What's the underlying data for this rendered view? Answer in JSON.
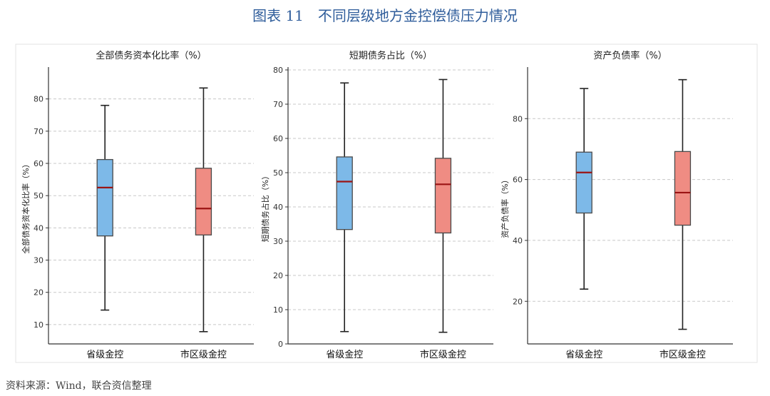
{
  "figure": {
    "title": "图表 11　不同层级地方金控偿债压力情况",
    "source": "资料来源：Wind，联合资信整理"
  },
  "colors": {
    "title": "#2f5d9b",
    "provincial_box": "#7db9e8",
    "municipal_box": "#ef8c83",
    "median": "#9b1414",
    "grid": "#c8c8c8"
  },
  "chart_data": [
    {
      "type": "box",
      "title": "全部债务资本化比率（%）",
      "ylabel": "全部债务资本化比率（%）",
      "ylim": [
        4,
        89
      ],
      "yticks": [
        10,
        20,
        30,
        40,
        50,
        60,
        70,
        80
      ],
      "grid": "horizontal-dashed",
      "categories": [
        "省级金控",
        "市区级金控"
      ],
      "boxes": [
        {
          "min": 14.5,
          "q1": 37.5,
          "median": 52.5,
          "q3": 61.2,
          "max": 78.0,
          "color": "#7db9e8"
        },
        {
          "min": 7.8,
          "q1": 37.8,
          "median": 46.0,
          "q3": 58.5,
          "max": 83.4,
          "color": "#ef8c83"
        }
      ]
    },
    {
      "type": "box",
      "title": "短期债务占比（%）",
      "ylabel": "短期债务占比（%）",
      "ylim": [
        0,
        80
      ],
      "yticks": [
        0,
        10,
        20,
        30,
        40,
        50,
        60,
        70,
        80
      ],
      "grid": "horizontal-dashed",
      "categories": [
        "省级金控",
        "市区级金控"
      ],
      "boxes": [
        {
          "min": 3.6,
          "q1": 33.4,
          "median": 47.4,
          "q3": 54.6,
          "max": 76.2,
          "color": "#7db9e8"
        },
        {
          "min": 3.4,
          "q1": 32.4,
          "median": 46.6,
          "q3": 54.2,
          "max": 77.2,
          "color": "#ef8c83"
        }
      ]
    },
    {
      "type": "box",
      "title": "资产负债率（%）",
      "ylabel": "资产负债率（%）",
      "ylim": [
        6,
        96
      ],
      "yticks": [
        20,
        40,
        60,
        80
      ],
      "grid": "horizontal-dashed",
      "categories": [
        "省级金控",
        "市区级金控"
      ],
      "boxes": [
        {
          "min": 24.0,
          "q1": 49.0,
          "median": 62.3,
          "q3": 69.0,
          "max": 89.9,
          "color": "#7db9e8"
        },
        {
          "min": 10.8,
          "q1": 45.0,
          "median": 55.7,
          "q3": 69.2,
          "max": 92.8,
          "color": "#ef8c83"
        }
      ]
    }
  ]
}
